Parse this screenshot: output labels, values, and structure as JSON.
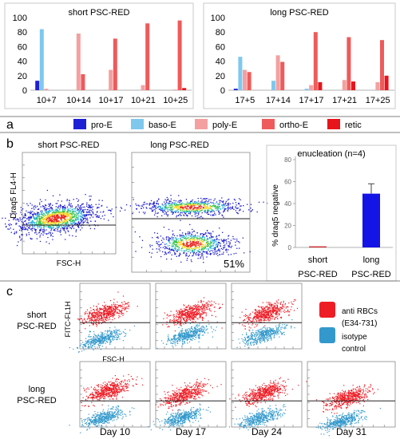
{
  "colors": {
    "pro_e": "#1f1fd6",
    "baso_e": "#7ec8ee",
    "poly_e": "#f4a0a0",
    "ortho_e": "#ef5a5a",
    "retic": "#e8141c",
    "enucleation_short": "#d42a2a",
    "enucleation_long": "#1414e6",
    "flow_red": "#ee1c24",
    "flow_blue": "#3399cc"
  },
  "panel_labels": {
    "a": "a",
    "b": "b",
    "c": "c"
  },
  "legend_a": {
    "items": [
      {
        "label": "pro-E",
        "color_key": "pro_e"
      },
      {
        "label": "baso-E",
        "color_key": "baso_e"
      },
      {
        "label": "poly-E",
        "color_key": "poly_e"
      },
      {
        "label": "ortho-E",
        "color_key": "ortho_e"
      },
      {
        "label": "retic",
        "color_key": "retic"
      }
    ]
  },
  "panel_b": {
    "plot1_title": "short PSC-RED",
    "plot2_title": "long PSC-RED",
    "ylabel": "Draq5 FL4-H",
    "xlabel": "FSC-H",
    "percent_label": "51%"
  },
  "panel_c": {
    "row1_label": [
      "short",
      "PSC-RED"
    ],
    "row2_label": [
      "long",
      "PSC-RED"
    ],
    "ylabel": "FITC-FL1H",
    "xlabel": "FSC-H",
    "days": [
      "Day 10",
      "Day 17",
      "Day 24",
      "Day 31"
    ],
    "legend": [
      {
        "label": [
          "anti RBCs",
          "(E34-731)"
        ],
        "color_key": "flow_red"
      },
      {
        "label": [
          "isotype",
          "control"
        ],
        "color_key": "flow_blue"
      }
    ]
  },
  "chart_data": [
    {
      "type": "bar",
      "title": "short PSC-RED",
      "categories": [
        "10+7",
        "10+14",
        "10+17",
        "10+21",
        "10+25"
      ],
      "series": [
        {
          "name": "pro-E",
          "values": [
            13,
            0,
            0,
            0,
            0
          ]
        },
        {
          "name": "baso-E",
          "values": [
            84,
            0,
            0,
            0,
            0
          ]
        },
        {
          "name": "poly-E",
          "values": [
            2,
            78,
            28,
            7,
            1
          ]
        },
        {
          "name": "ortho-E",
          "values": [
            0,
            22,
            71,
            92,
            96
          ]
        },
        {
          "name": "retic",
          "values": [
            0,
            0,
            0,
            0,
            3
          ]
        }
      ],
      "ylim": [
        0,
        100
      ],
      "yticks": [
        0,
        20,
        40,
        60,
        80,
        100
      ],
      "grid": false
    },
    {
      "type": "bar",
      "title": "long PSC-RED",
      "categories": [
        "17+5",
        "17+14",
        "17+17",
        "17+21",
        "17+25"
      ],
      "series": [
        {
          "name": "pro-E",
          "values": [
            2,
            0,
            0,
            0,
            0
          ]
        },
        {
          "name": "baso-E",
          "values": [
            46,
            13,
            2,
            0,
            0
          ]
        },
        {
          "name": "poly-E",
          "values": [
            28,
            48,
            7,
            14,
            11
          ]
        },
        {
          "name": "ortho-E",
          "values": [
            25,
            39,
            80,
            73,
            69
          ]
        },
        {
          "name": "retic",
          "values": [
            0,
            0,
            11,
            12,
            20
          ]
        }
      ],
      "ylim": [
        0,
        100
      ],
      "yticks": [
        0,
        20,
        40,
        60,
        80,
        100
      ],
      "grid": false
    },
    {
      "type": "bar",
      "title": "enucleation (n=4)",
      "categories": [
        [
          "short",
          "PSC-RED"
        ],
        [
          "long",
          "PSC-RED"
        ]
      ],
      "values": [
        1,
        49
      ],
      "error": [
        0,
        9
      ],
      "ylabel": "% draq5 negative",
      "ylim": [
        0,
        80
      ],
      "yticks": [
        0,
        20,
        40,
        60,
        80
      ],
      "grid": false
    }
  ]
}
